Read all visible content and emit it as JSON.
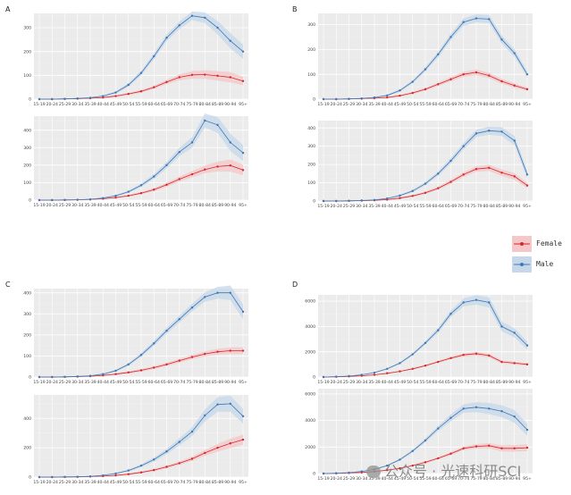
{
  "panels": [
    "A",
    "B",
    "C",
    "D"
  ],
  "legend": [
    {
      "label": "Female",
      "color": "#d7262b",
      "band": "#f4c7c8"
    },
    {
      "label": "Male",
      "color": "#3f78b4",
      "band": "#c6d7ea"
    }
  ],
  "watermark": "公众号 · 光速科研SCI",
  "chart_data": [
    {
      "panel": "A",
      "position": "top",
      "type": "line",
      "categories": [
        "15-19",
        "20-24",
        "25-29",
        "30-34",
        "35-39",
        "40-44",
        "45-49",
        "50-54",
        "55-59",
        "60-64",
        "65-69",
        "70-74",
        "75-79",
        "80-84",
        "85-89",
        "90-94",
        "95+"
      ],
      "ylim": [
        0,
        360
      ],
      "yticks": [
        0,
        100,
        200,
        300
      ],
      "series": [
        {
          "name": "Female",
          "values": [
            0,
            0,
            1,
            2,
            4,
            7,
            13,
            22,
            33,
            50,
            72,
            92,
            102,
            103,
            98,
            92,
            76
          ],
          "ci": [
            0,
            0,
            1,
            1,
            2,
            3,
            4,
            5,
            6,
            7,
            9,
            12,
            16,
            18,
            20,
            22,
            18
          ]
        },
        {
          "name": "Male",
          "values": [
            0,
            0,
            1,
            3,
            6,
            13,
            28,
            60,
            110,
            180,
            258,
            310,
            350,
            342,
            300,
            245,
            200
          ],
          "ci": [
            0,
            0,
            1,
            1,
            2,
            3,
            5,
            8,
            10,
            12,
            14,
            16,
            18,
            22,
            28,
            32,
            30
          ]
        }
      ]
    },
    {
      "panel": "A",
      "position": "bottom",
      "type": "line",
      "categories": [
        "15-19",
        "20-24",
        "25-29",
        "30-34",
        "35-39",
        "40-44",
        "45-49",
        "50-54",
        "55-59",
        "60-64",
        "65-69",
        "70-74",
        "75-79",
        "80-84",
        "85-89",
        "90-94",
        "95+"
      ],
      "ylim": [
        0,
        480
      ],
      "yticks": [
        0,
        100,
        200,
        300,
        400
      ],
      "series": [
        {
          "name": "Female",
          "values": [
            0,
            0,
            1,
            2,
            4,
            8,
            15,
            25,
            40,
            60,
            88,
            120,
            148,
            175,
            192,
            198,
            172
          ],
          "ci": [
            0,
            0,
            1,
            1,
            2,
            3,
            4,
            5,
            7,
            9,
            12,
            15,
            18,
            22,
            28,
            35,
            30
          ]
        },
        {
          "name": "Male",
          "values": [
            0,
            0,
            1,
            2,
            5,
            12,
            25,
            48,
            85,
            135,
            200,
            275,
            330,
            455,
            430,
            330,
            270
          ],
          "ci": [
            0,
            0,
            1,
            1,
            2,
            3,
            5,
            7,
            10,
            14,
            18,
            24,
            30,
            40,
            45,
            50,
            45
          ]
        }
      ]
    },
    {
      "panel": "B",
      "position": "top",
      "type": "line",
      "categories": [
        "15-19",
        "20-24",
        "25-29",
        "30-34",
        "35-39",
        "40-44",
        "45-49",
        "50-54",
        "55-59",
        "60-64",
        "65-69",
        "70-74",
        "75-79",
        "80-84",
        "85-89",
        "90-94",
        "95+"
      ],
      "ylim": [
        0,
        345
      ],
      "yticks": [
        0,
        100,
        200,
        300
      ],
      "series": [
        {
          "name": "Female",
          "values": [
            0,
            0,
            1,
            2,
            4,
            7,
            14,
            25,
            40,
            60,
            80,
            100,
            108,
            95,
            72,
            55,
            40
          ],
          "ci": [
            0,
            0,
            1,
            1,
            2,
            3,
            4,
            5,
            6,
            7,
            9,
            10,
            11,
            11,
            10,
            9,
            7
          ]
        },
        {
          "name": "Male",
          "values": [
            0,
            0,
            1,
            3,
            7,
            15,
            35,
            70,
            120,
            180,
            250,
            310,
            325,
            322,
            240,
            185,
            100
          ],
          "ci": [
            0,
            0,
            1,
            1,
            2,
            3,
            5,
            7,
            9,
            11,
            13,
            15,
            16,
            16,
            16,
            15,
            12
          ]
        }
      ]
    },
    {
      "panel": "B",
      "position": "bottom",
      "type": "line",
      "categories": [
        "15-19",
        "20-24",
        "25-29",
        "30-34",
        "35-39",
        "40-44",
        "45-49",
        "50-54",
        "55-59",
        "60-64",
        "65-69",
        "70-74",
        "75-79",
        "80-84",
        "85-89",
        "90-94",
        "95+"
      ],
      "ylim": [
        0,
        440
      ],
      "yticks": [
        0,
        100,
        200,
        300,
        400
      ],
      "series": [
        {
          "name": "Female",
          "values": [
            0,
            0,
            1,
            2,
            4,
            8,
            16,
            28,
            45,
            70,
            105,
            145,
            175,
            182,
            155,
            135,
            85
          ],
          "ci": [
            0,
            0,
            1,
            1,
            2,
            3,
            4,
            5,
            7,
            9,
            11,
            13,
            15,
            17,
            18,
            18,
            14
          ]
        },
        {
          "name": "Male",
          "values": [
            0,
            0,
            1,
            3,
            6,
            14,
            30,
            55,
            95,
            150,
            220,
            300,
            370,
            385,
            380,
            330,
            145
          ],
          "ci": [
            0,
            0,
            1,
            1,
            2,
            3,
            5,
            7,
            9,
            12,
            15,
            18,
            20,
            22,
            24,
            26,
            22
          ]
        }
      ]
    },
    {
      "panel": "C",
      "position": "top",
      "type": "line",
      "categories": [
        "15-19",
        "20-24",
        "25-29",
        "30-34",
        "35-39",
        "40-44",
        "45-49",
        "50-54",
        "55-59",
        "60-64",
        "65-69",
        "70-74",
        "75-79",
        "80-84",
        "85-89",
        "90-94",
        "95+"
      ],
      "ylim": [
        0,
        420
      ],
      "yticks": [
        0,
        100,
        200,
        300,
        400
      ],
      "series": [
        {
          "name": "Female",
          "values": [
            0,
            0,
            1,
            2,
            4,
            8,
            14,
            22,
            32,
            45,
            60,
            78,
            95,
            110,
            120,
            125,
            125
          ],
          "ci": [
            0,
            0,
            1,
            1,
            2,
            3,
            4,
            5,
            6,
            7,
            8,
            9,
            10,
            12,
            14,
            16,
            16
          ]
        },
        {
          "name": "Male",
          "values": [
            0,
            0,
            1,
            3,
            6,
            14,
            30,
            60,
            105,
            160,
            220,
            275,
            330,
            380,
            400,
            400,
            310
          ],
          "ci": [
            0,
            0,
            1,
            1,
            2,
            3,
            5,
            7,
            9,
            12,
            14,
            16,
            18,
            22,
            28,
            35,
            35
          ]
        }
      ]
    },
    {
      "panel": "C",
      "position": "bottom",
      "type": "line",
      "categories": [
        "15-19",
        "20-24",
        "25-29",
        "30-34",
        "35-39",
        "40-44",
        "45-49",
        "50-54",
        "55-59",
        "60-64",
        "65-69",
        "70-74",
        "75-79",
        "80-84",
        "85-89",
        "90-94",
        "95+"
      ],
      "ylim": [
        0,
        560
      ],
      "yticks": [
        0,
        200,
        400
      ],
      "series": [
        {
          "name": "Female",
          "values": [
            0,
            0,
            1,
            2,
            4,
            7,
            12,
            20,
            32,
            48,
            70,
            95,
            125,
            165,
            200,
            230,
            255
          ],
          "ci": [
            0,
            0,
            1,
            1,
            2,
            3,
            4,
            5,
            6,
            8,
            10,
            12,
            15,
            20,
            26,
            32,
            35
          ]
        },
        {
          "name": "Male",
          "values": [
            0,
            0,
            1,
            2,
            5,
            12,
            25,
            45,
            78,
            120,
            175,
            240,
            310,
            420,
            495,
            500,
            415
          ],
          "ci": [
            0,
            0,
            1,
            1,
            2,
            3,
            5,
            7,
            10,
            14,
            18,
            24,
            30,
            40,
            50,
            55,
            50
          ]
        }
      ]
    },
    {
      "panel": "D",
      "position": "top",
      "type": "line",
      "categories": [
        "15-19",
        "20-24",
        "25-29",
        "30-34",
        "35-39",
        "40-44",
        "45-49",
        "50-54",
        "55-59",
        "60-64",
        "65-69",
        "70-74",
        "75-79",
        "80-84",
        "85-89",
        "90-94",
        "95+"
      ],
      "ylim": [
        0,
        6500
      ],
      "yticks": [
        0,
        2000,
        4000,
        6000
      ],
      "series": [
        {
          "name": "Female",
          "values": [
            0,
            20,
            50,
            100,
            180,
            300,
            450,
            650,
            900,
            1200,
            1500,
            1750,
            1850,
            1700,
            1200,
            1100,
            1000
          ],
          "ci": [
            0,
            5,
            10,
            15,
            20,
            30,
            40,
            55,
            70,
            90,
            110,
            130,
            150,
            150,
            130,
            120,
            110
          ]
        },
        {
          "name": "Male",
          "values": [
            0,
            30,
            80,
            180,
            350,
            650,
            1100,
            1800,
            2700,
            3700,
            5000,
            5900,
            6100,
            5900,
            4000,
            3500,
            2500
          ],
          "ci": [
            0,
            10,
            15,
            20,
            30,
            50,
            80,
            110,
            150,
            200,
            260,
            320,
            380,
            400,
            380,
            360,
            320
          ]
        }
      ]
    },
    {
      "panel": "D",
      "position": "bottom",
      "type": "line",
      "categories": [
        "15-19",
        "20-24",
        "25-29",
        "30-34",
        "35-39",
        "40-44",
        "45-49",
        "50-54",
        "55-59",
        "60-64",
        "65-69",
        "70-74",
        "75-79",
        "80-84",
        "85-89",
        "90-94",
        "95+"
      ],
      "ylim": [
        0,
        6400
      ],
      "yticks": [
        0,
        2000,
        4000,
        6000
      ],
      "series": [
        {
          "name": "Female",
          "values": [
            0,
            15,
            40,
            80,
            150,
            260,
            400,
            600,
            850,
            1150,
            1500,
            1900,
            2050,
            2100,
            1900,
            1900,
            1950
          ],
          "ci": [
            0,
            5,
            10,
            15,
            20,
            30,
            40,
            55,
            70,
            90,
            110,
            140,
            170,
            200,
            230,
            250,
            260
          ]
        },
        {
          "name": "Male",
          "values": [
            0,
            25,
            70,
            160,
            320,
            600,
            1050,
            1700,
            2500,
            3400,
            4200,
            4900,
            5000,
            4900,
            4700,
            4300,
            3300
          ],
          "ci": [
            0,
            10,
            15,
            20,
            30,
            50,
            80,
            110,
            150,
            200,
            260,
            320,
            380,
            420,
            450,
            480,
            450
          ]
        }
      ]
    }
  ]
}
